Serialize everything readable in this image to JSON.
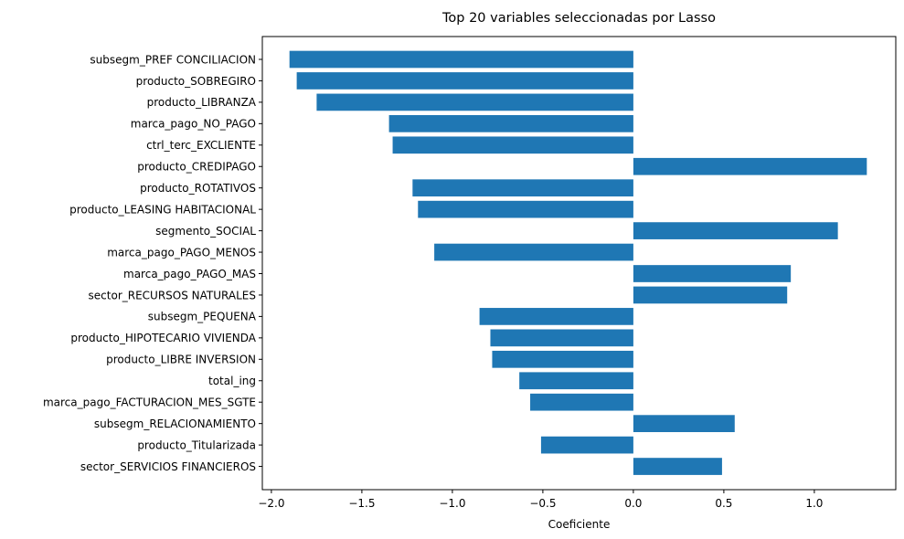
{
  "chart_data": {
    "type": "bar",
    "orientation": "horizontal",
    "title": "Top 20 variables seleccionadas por Lasso",
    "xlabel": "Coeficiente",
    "ylabel": "",
    "xlim": [
      -2.05,
      1.45
    ],
    "xticks": [
      -2.0,
      -1.5,
      -1.0,
      -0.5,
      0.0,
      0.5,
      1.0
    ],
    "xtick_labels": [
      "−2.0",
      "−1.5",
      "−1.0",
      "−0.5",
      "0.0",
      "0.5",
      "1.0"
    ],
    "grid": false,
    "bar_color": "#1f77b4",
    "categories": [
      "subsegm_PREF CONCILIACION",
      "producto_SOBREGIRO",
      "producto_LIBRANZA",
      "marca_pago_NO_PAGO",
      "ctrl_terc_EXCLIENTE",
      "producto_CREDIPAGO",
      "producto_ROTATIVOS",
      "producto_LEASING HABITACIONAL",
      "segmento_SOCIAL",
      "marca_pago_PAGO_MENOS",
      "marca_pago_PAGO_MAS",
      "sector_RECURSOS NATURALES",
      "subsegm_PEQUENA",
      "producto_HIPOTECARIO VIVIENDA",
      "producto_LIBRE INVERSION",
      "total_ing",
      "marca_pago_FACTURACION_MES_SGTE",
      "subsegm_RELACIONAMIENTO",
      "producto_Titularizada",
      "sector_SERVICIOS FINANCIEROS"
    ],
    "values": [
      -1.9,
      -1.86,
      -1.75,
      -1.35,
      -1.33,
      1.29,
      -1.22,
      -1.19,
      1.13,
      -1.1,
      0.87,
      0.85,
      -0.85,
      -0.79,
      -0.78,
      -0.63,
      -0.57,
      0.56,
      -0.51,
      0.49
    ]
  }
}
